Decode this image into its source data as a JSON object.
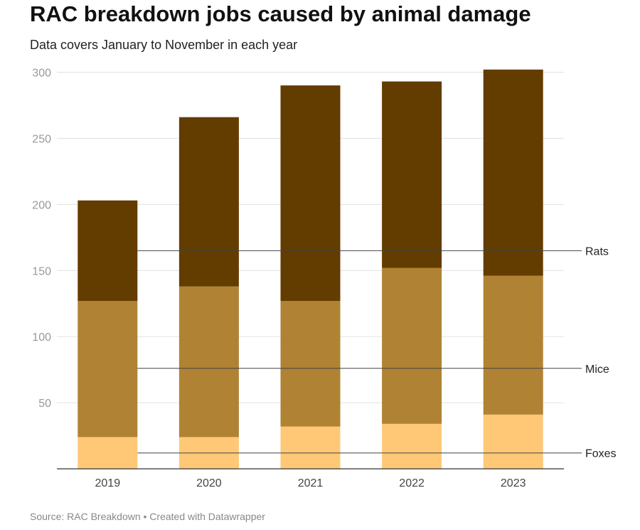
{
  "chart_data": {
    "type": "bar",
    "stacked": true,
    "title": "RAC breakdown jobs caused by animal damage",
    "subtitle": "Data covers January to November in each year",
    "source": "Source: RAC Breakdown • Created with Datawrapper",
    "categories": [
      "2019",
      "2020",
      "2021",
      "2022",
      "2023"
    ],
    "series": [
      {
        "name": "Foxes",
        "color": "#fec877",
        "values": [
          24,
          24,
          32,
          34,
          41
        ]
      },
      {
        "name": "Mice",
        "color": "#b08234",
        "values": [
          103,
          114,
          95,
          118,
          105
        ]
      },
      {
        "name": "Rats",
        "color": "#633c00",
        "values": [
          76,
          128,
          163,
          141,
          156
        ]
      }
    ],
    "yticks": [
      50,
      100,
      150,
      200,
      250,
      300
    ],
    "ylim": [
      0,
      300
    ],
    "grid": true,
    "legend": "inline-right"
  }
}
